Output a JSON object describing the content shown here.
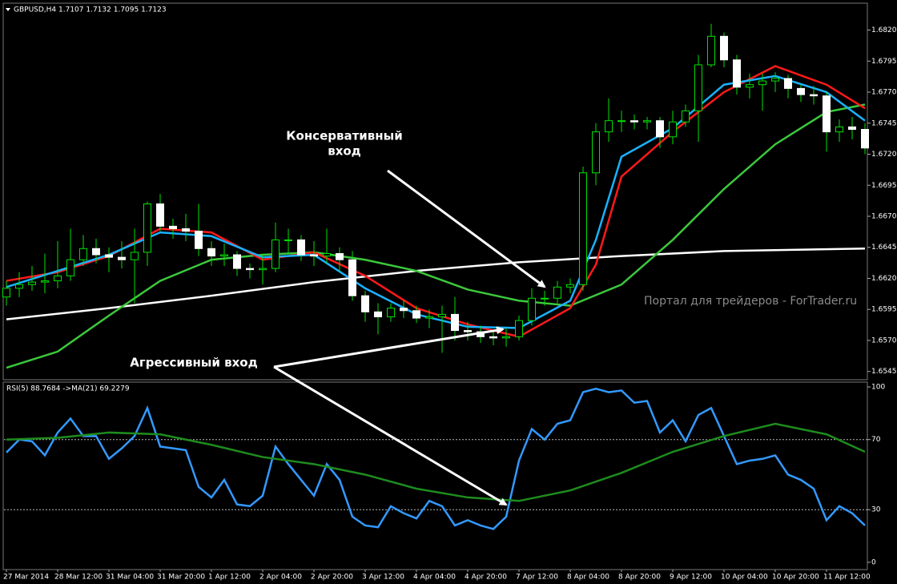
{
  "chart_data": [
    {
      "type": "candlestick",
      "title": "GBPUSD,H4  1.7107 1.7132 1.7095 1.7123",
      "watermark": "Портал для трейдеров - ForTrader.ru",
      "annotations": [
        {
          "lines": [
            "Консервативный",
            "вход"
          ]
        },
        {
          "lines": [
            "Агрессивный вход"
          ]
        }
      ],
      "categories": [
        "27 Mar 2014",
        null,
        null,
        null,
        "28 Mar 12:00",
        null,
        null,
        null,
        "31 Mar 04:00",
        null,
        null,
        null,
        "31 Mar 20:00",
        null,
        null,
        null,
        "1 Apr 12:00",
        null,
        null,
        null,
        "2 Apr 04:00",
        null,
        null,
        null,
        "2 Apr 20:00",
        null,
        null,
        null,
        "3 Apr 12:00",
        null,
        null,
        null,
        "4 Apr 04:00",
        null,
        null,
        null,
        "4 Apr 20:00",
        null,
        null,
        null,
        "7 Apr 12:00",
        null,
        null,
        null,
        "8 Apr 04:00",
        null,
        null,
        null,
        "8 Apr 20:00",
        null,
        null,
        null,
        "9 Apr 12:00",
        null,
        null,
        null,
        "10 Apr 04:00",
        null,
        null,
        null,
        "10 Apr 20:00",
        null,
        null,
        null,
        "11 Apr 12:00",
        null,
        null,
        null
      ],
      "open": [
        1.6605,
        1.6612,
        1.6615,
        1.6617,
        1.6618,
        1.6622,
        1.6635,
        1.6644,
        1.6639,
        1.6637,
        1.6635,
        1.6641,
        1.668,
        1.6662,
        1.666,
        1.6658,
        1.6644,
        1.6638,
        1.6639,
        1.6628,
        1.6627,
        1.6628,
        1.6651,
        1.6651,
        1.6639,
        1.6638,
        1.664,
        1.6635,
        1.6606,
        1.6593,
        1.6589,
        1.6596,
        1.6594,
        1.6588,
        1.6589,
        1.6591,
        1.6578,
        1.6577,
        1.6573,
        1.6572,
        1.6573,
        1.6586,
        1.6604,
        1.6604,
        1.6613,
        1.6615,
        1.6705,
        1.6738,
        1.6747,
        1.6747,
        1.6746,
        1.6747,
        1.6734,
        1.6746,
        1.6755,
        1.6792,
        1.6815,
        1.6796,
        1.6774,
        1.6776,
        1.6779,
        1.6781,
        1.6773,
        1.6768,
        1.6767,
        1.6738,
        1.6742,
        1.674
      ],
      "high": [
        1.6618,
        1.6625,
        1.663,
        1.664,
        1.665,
        1.666,
        1.6655,
        1.6652,
        1.6645,
        1.665,
        1.666,
        1.6682,
        1.6688,
        1.6668,
        1.6672,
        1.668,
        1.665,
        1.6648,
        1.6642,
        1.6632,
        1.664,
        1.6665,
        1.666,
        1.6655,
        1.665,
        1.666,
        1.6645,
        1.6642,
        1.661,
        1.66,
        1.66,
        1.6602,
        1.6598,
        1.6595,
        1.6598,
        1.6605,
        1.6585,
        1.6582,
        1.6578,
        1.658,
        1.659,
        1.6612,
        1.661,
        1.6618,
        1.662,
        1.671,
        1.6745,
        1.6765,
        1.6755,
        1.6752,
        1.675,
        1.675,
        1.6755,
        1.676,
        1.68,
        1.6825,
        1.6818,
        1.68,
        1.6785,
        1.6785,
        1.6786,
        1.6784,
        1.6776,
        1.6775,
        1.677,
        1.6748,
        1.675,
        1.6745
      ],
      "low": [
        1.6598,
        1.6605,
        1.661,
        1.6608,
        1.6612,
        1.6618,
        1.663,
        1.6632,
        1.6625,
        1.6628,
        1.66,
        1.663,
        1.6658,
        1.6652,
        1.665,
        1.6638,
        1.663,
        1.663,
        1.6622,
        1.662,
        1.6615,
        1.6625,
        1.664,
        1.6634,
        1.663,
        1.6632,
        1.6625,
        1.6602,
        1.6585,
        1.6575,
        1.6585,
        1.6588,
        1.6584,
        1.658,
        1.656,
        1.657,
        1.657,
        1.6568,
        1.6566,
        1.6565,
        1.657,
        1.6582,
        1.6598,
        1.66,
        1.6608,
        1.661,
        1.6695,
        1.673,
        1.6738,
        1.674,
        1.674,
        1.6725,
        1.6728,
        1.6742,
        1.673,
        1.679,
        1.679,
        1.6768,
        1.6765,
        1.6755,
        1.677,
        1.6765,
        1.6762,
        1.676,
        1.6722,
        1.673,
        1.6732,
        1.672
      ],
      "close": [
        1.6612,
        1.6615,
        1.6617,
        1.6618,
        1.6622,
        1.6635,
        1.6644,
        1.6639,
        1.6637,
        1.6635,
        1.6641,
        1.668,
        1.6662,
        1.666,
        1.6658,
        1.6644,
        1.6638,
        1.6639,
        1.6628,
        1.6627,
        1.6628,
        1.6651,
        1.6651,
        1.6639,
        1.6638,
        1.664,
        1.6635,
        1.6606,
        1.6593,
        1.6589,
        1.6596,
        1.6594,
        1.6588,
        1.6589,
        1.6591,
        1.6578,
        1.6577,
        1.6573,
        1.6572,
        1.6573,
        1.6586,
        1.6604,
        1.6604,
        1.6613,
        1.6615,
        1.6705,
        1.6738,
        1.6747,
        1.6747,
        1.6746,
        1.6747,
        1.6734,
        1.6746,
        1.6755,
        1.6792,
        1.6815,
        1.6796,
        1.6774,
        1.6776,
        1.6779,
        1.6781,
        1.6773,
        1.6768,
        1.6767,
        1.6738,
        1.6742,
        1.674,
        1.6725
      ],
      "up_color": "#00e000",
      "down_color": "#ffffff",
      "overlays": [
        {
          "color": "#ffffff",
          "x": [
            0,
            8,
            16,
            24,
            32,
            40,
            48,
            56,
            67
          ],
          "values": [
            1.6587,
            1.6596,
            1.6606,
            1.6617,
            1.6626,
            1.6633,
            1.6638,
            1.6642,
            1.6644
          ]
        },
        {
          "color": "#3cc83c",
          "x": [
            0,
            4,
            8,
            12,
            16,
            20,
            24,
            28,
            32,
            36,
            40,
            44,
            48,
            52,
            56,
            60,
            64,
            67
          ],
          "values": [
            1.6548,
            1.6561,
            1.659,
            1.6618,
            1.6635,
            1.6639,
            1.6641,
            1.6635,
            1.6626,
            1.6611,
            1.6602,
            1.6598,
            1.6615,
            1.6651,
            1.6692,
            1.6728,
            1.6754,
            1.676
          ]
        },
        {
          "color": "#ff1a1a",
          "x": [
            0,
            4,
            8,
            12,
            16,
            20,
            24,
            28,
            32,
            36,
            40,
            44,
            46,
            48,
            52,
            56,
            60,
            64,
            67
          ],
          "values": [
            1.6618,
            1.6625,
            1.6638,
            1.666,
            1.6657,
            1.6635,
            1.6641,
            1.6622,
            1.6596,
            1.6583,
            1.6573,
            1.6596,
            1.6631,
            1.6702,
            1.6738,
            1.677,
            1.6791,
            1.6776,
            1.6757
          ]
        },
        {
          "color": "#1ab2ff",
          "x": [
            0,
            4,
            8,
            12,
            16,
            20,
            24,
            28,
            32,
            36,
            40,
            44,
            46,
            48,
            52,
            56,
            60,
            64,
            67
          ],
          "values": [
            1.6613,
            1.6626,
            1.6639,
            1.6657,
            1.6654,
            1.6637,
            1.6639,
            1.6612,
            1.6591,
            1.6581,
            1.658,
            1.6602,
            1.6651,
            1.6718,
            1.6741,
            1.6776,
            1.6783,
            1.677,
            1.6747
          ]
        }
      ],
      "ylim": [
        1.6539,
        1.6841
      ],
      "yticks": [
        1.6545,
        {
          "value": 1.657,
          "label": "1.6570"
        },
        1.6595,
        {
          "value": 1.662,
          "label": "1.6620"
        },
        1.6645,
        {
          "value": 1.667,
          "label": "1.6670"
        },
        1.6695,
        {
          "value": 1.672,
          "label": "1.6720"
        },
        1.6745,
        {
          "value": 1.677,
          "label": "1.6770"
        },
        1.6795,
        {
          "value": 1.682,
          "label": "1.6820"
        }
      ]
    },
    {
      "type": "line",
      "title": "RSI(5) 88.7684  ->MA(21) 69.2279",
      "series": [
        {
          "color": "#3399ff",
          "values": [
            62.6,
            70,
            69,
            61,
            74,
            82,
            72,
            72,
            59,
            65,
            72,
            88,
            66,
            65,
            64,
            43,
            37,
            47,
            33,
            32,
            38,
            66,
            56,
            47,
            38,
            56,
            47,
            26,
            21,
            20,
            32,
            28,
            25,
            35,
            32,
            21,
            24,
            21,
            19,
            26,
            58,
            76,
            70,
            79,
            81,
            97,
            99,
            97,
            98,
            91,
            92,
            74,
            81,
            69,
            84,
            88,
            72,
            56,
            58,
            59,
            61,
            50,
            47,
            42,
            24,
            32,
            28,
            21
          ]
        },
        {
          "color": "#1e8c1e",
          "x": [
            0,
            4,
            8,
            12,
            16,
            20,
            24,
            28,
            32,
            36,
            40,
            44,
            48,
            52,
            56,
            60,
            64,
            67
          ],
          "values": [
            70,
            71,
            74,
            73,
            67,
            60,
            56,
            50,
            42,
            37,
            35,
            41,
            51,
            63,
            72,
            79,
            73,
            63
          ]
        }
      ],
      "ylim": [
        -3.7,
        102.3
      ],
      "yticks": [
        0,
        30,
        70,
        100
      ],
      "levels": [
        30,
        70
      ]
    }
  ]
}
